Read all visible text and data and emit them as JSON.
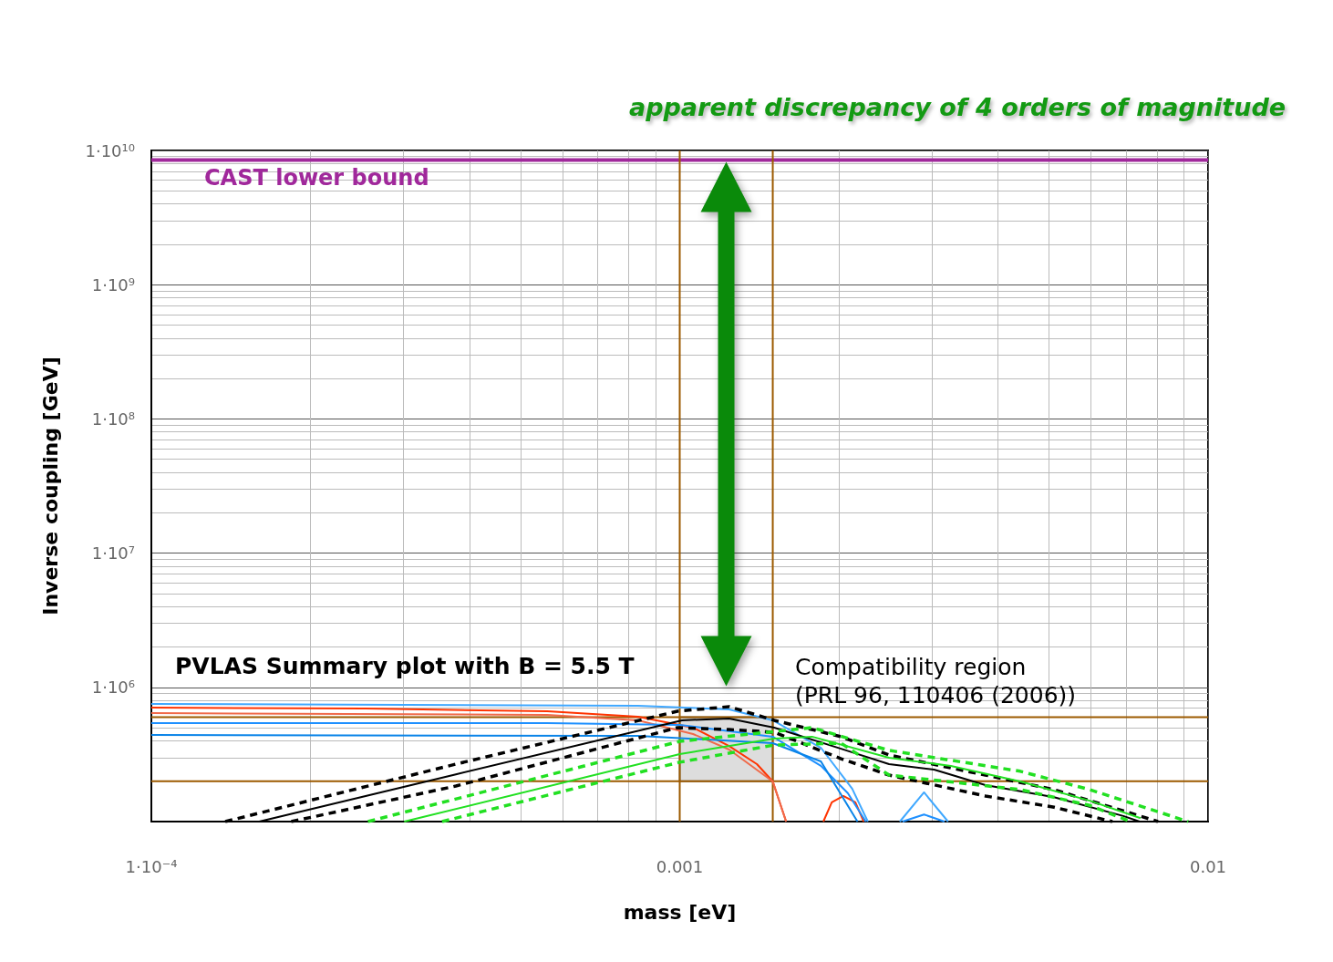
{
  "chart_data": {
    "type": "line",
    "xlabel": "mass [eV]",
    "ylabel": "Inverse coupling [GeV]",
    "log": "xy",
    "grid": true,
    "xlim": [
      0.0001,
      0.01
    ],
    "xticks": [
      {
        "value": 0.0001,
        "label": "1·10⁻⁴"
      },
      0.001,
      0.01
    ],
    "ylim": [
      100000,
      10000000000
    ],
    "yticks": [
      {
        "value": 100000,
        "label": null
      },
      {
        "value": 1000000,
        "label": "1·10⁶"
      },
      {
        "value": 10000000,
        "label": "1·10⁷"
      },
      {
        "value": 100000000,
        "label": "1·10⁸"
      },
      {
        "value": 1000000000,
        "label": "1·10⁹"
      },
      {
        "value": 10000000000,
        "label": "1·10¹⁰"
      }
    ],
    "series": [
      {
        "color": "#ff3300",
        "line_style": "solid",
        "x": [
          0.0001,
          0.000254,
          0.000561,
          0.000834,
          0.00106,
          0.00124,
          0.0014,
          0.0015,
          0.00159,
          0.0017,
          0.00187,
          0.00194,
          0.00204,
          0.00215,
          0.00223
        ],
        "values": [
          706000,
          695000,
          664000,
          604000,
          501000,
          366000,
          268000,
          199000,
          100000,
          null,
          100000,
          139000,
          155000,
          139000,
          100000
        ]
      },
      {
        "color": "#f06a4a",
        "line_style": "solid",
        "x": [
          0.0001,
          0.000561,
          0.000834,
          0.00106,
          0.00124,
          0.0015,
          0.00159
        ],
        "values": [
          643000,
          624000,
          568000,
          449000,
          344000,
          199000,
          100000
        ]
      },
      {
        "color": "#1e90ff",
        "line_style": "solid",
        "x": [
          0.0001,
          0.000561,
          0.001,
          0.0015,
          0.00185,
          0.00208,
          0.00225,
          0.0024,
          0.00264,
          0.0029,
          0.00317
        ],
        "values": [
          542000,
          542000,
          525000,
          429000,
          260000,
          163000,
          100000,
          null,
          100000,
          113000,
          100000
        ]
      },
      {
        "color": "#40a8ff",
        "line_style": "solid",
        "x": [
          0.0001,
          0.000834,
          0.00124,
          0.0015,
          0.00185,
          0.00212,
          0.00227,
          0.0024,
          0.00261,
          0.0029,
          0.00322
        ],
        "values": [
          752000,
          729000,
          685000,
          568000,
          355000,
          176000,
          100000,
          null,
          100000,
          165000,
          100000
        ]
      },
      {
        "color": "#0a84e8",
        "line_style": "solid",
        "x": [
          0.0001,
          0.000834,
          0.0015,
          0.00185,
          0.00217
        ],
        "values": [
          442000,
          435000,
          384000,
          281000,
          100000
        ]
      },
      {
        "color": "#000000",
        "line_style": "solid",
        "x": [
          0.00016,
          0.000377,
          0.00101,
          0.00124,
          0.00151,
          0.00202,
          0.00249,
          0.00303,
          0.00379,
          0.00511,
          0.00691,
          0.00742
        ],
        "values": [
          100000,
          225000,
          568000,
          586000,
          501000,
          349000,
          268000,
          244000,
          187000,
          152000,
          110000,
          100000
        ]
      },
      {
        "color": "#000000",
        "line_style": "dashed",
        "x": [
          0.000138,
          0.000377,
          0.00099,
          0.00124,
          0.00151,
          0.00202,
          0.00249,
          0.00379,
          0.00511,
          0.00804
        ],
        "values": [
          100000,
          268000,
          664000,
          718000,
          568000,
          429000,
          313000,
          222000,
          173000,
          100000
        ]
      },
      {
        "color": "#000000",
        "line_style": "dashed",
        "x": [
          0.000184,
          0.000377,
          0.00099,
          0.00124,
          0.00151,
          0.00202,
          0.00249,
          0.00379,
          0.00511,
          0.00659
        ],
        "values": [
          100000,
          184000,
          501000,
          485000,
          463000,
          294000,
          222000,
          155000,
          128000,
          100000
        ]
      },
      {
        "color": "#22e022",
        "line_style": "solid",
        "x": [
          0.000301,
          0.001,
          0.00151,
          0.00178,
          0.00249,
          0.00326,
          0.00441,
          0.00597,
          0.00745
        ],
        "values": [
          100000,
          318000,
          415000,
          429000,
          299000,
          260000,
          199000,
          143000,
          106000
        ]
      },
      {
        "color": "#22e022",
        "line_style": "dashed",
        "x": [
          0.000257,
          0.001,
          0.00178,
          0.00249,
          0.00441,
          0.00597,
          0.00917
        ],
        "values": [
          100000,
          396000,
          501000,
          339000,
          237000,
          173000,
          100000
        ]
      },
      {
        "color": "#22e022",
        "line_style": "dashed",
        "x": [
          0.000355,
          0.001,
          0.00151,
          0.00202,
          0.00249,
          0.00441,
          0.00597,
          0.00713
        ],
        "values": [
          100000,
          277000,
          372000,
          384000,
          222000,
          173000,
          132000,
          100000
        ]
      }
    ],
    "ref_lines": [
      {
        "axis": "y",
        "value": 8500000000,
        "label": "CAST lower bound",
        "color": "#a0289b"
      },
      {
        "axis": "x",
        "value": 0.001,
        "color": "#9c5a00"
      },
      {
        "axis": "x",
        "value": 0.0015,
        "color": "#9c5a00"
      },
      {
        "axis": "y",
        "value": 600000,
        "color": "#9c5a00"
      },
      {
        "axis": "y",
        "value": 200000,
        "color": "#9c5a00"
      }
    ],
    "bands": [
      {
        "axis": "x",
        "from": 0.001,
        "to": 0.0015,
        "color": "#dddddd"
      }
    ],
    "annotations": [
      "apparent discrepancy of 4 orders of magnitude",
      "PVLAS Summary plot with B = 5.5 T",
      "Compatibility region\n(PRL 96, 110406 (2006))"
    ]
  }
}
